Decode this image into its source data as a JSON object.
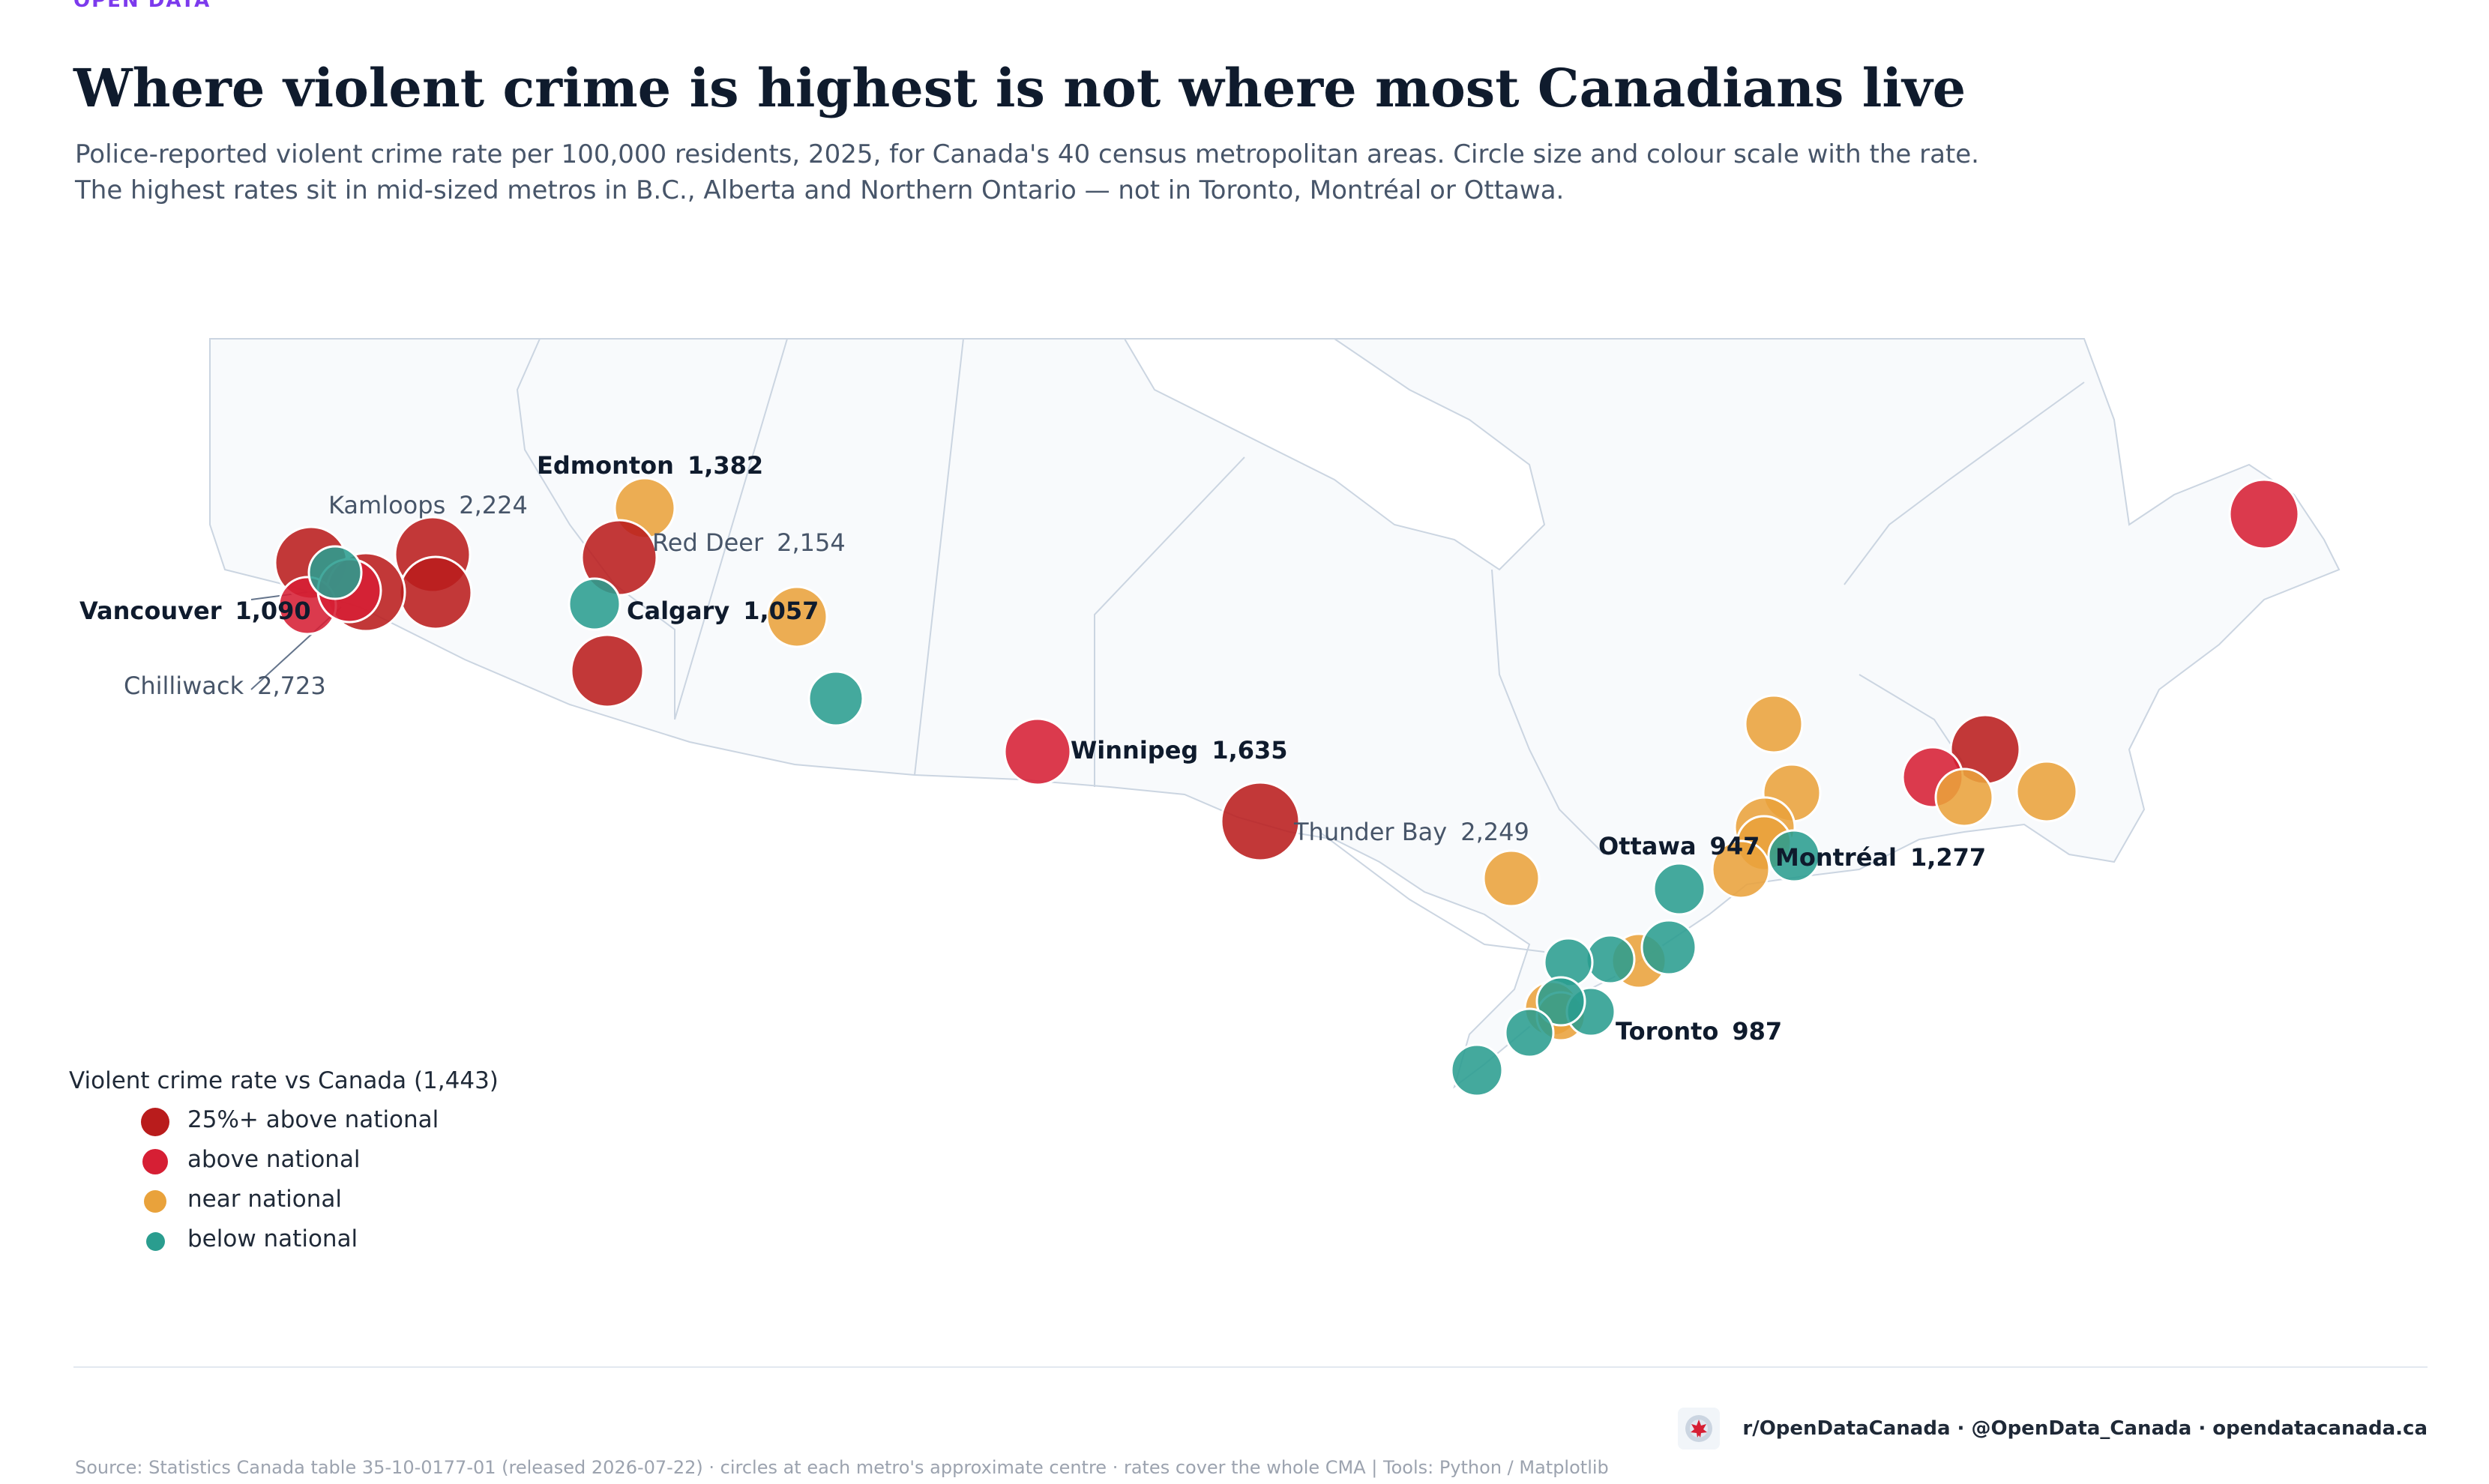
{
  "header": {
    "brand_cut": "OPEN DATA",
    "title": "Where violent crime is highest is not where most Canadians live",
    "subtitle_lines": [
      "Police-reported violent crime rate per 100,000 residents, 2025, for Canada's 40 census metropolitan areas. Circle size and colour scale with the rate.",
      "The highest rates sit in mid-sized metros in B.C., Alberta and Northern Ontario — not in Toronto, Montréal or Ottawa."
    ]
  },
  "colors": {
    "well_above": "#b91c1c",
    "above": "#d61f34",
    "near": "#e9a23b",
    "below": "#2a9d8f",
    "land": "#f8fafc",
    "border": "#cbd5e1"
  },
  "legend": {
    "title": "Violent crime rate vs Canada (1,443)",
    "items": [
      {
        "label": "25%+ above national",
        "color": "#b91c1c"
      },
      {
        "label": "above national",
        "color": "#d61f34"
      },
      {
        "label": "near national",
        "color": "#e9a23b"
      },
      {
        "label": "below national",
        "color": "#2a9d8f"
      }
    ]
  },
  "labels": {
    "kamloops": {
      "name": "Kamloops",
      "value": "2,224"
    },
    "edmonton": {
      "name": "Edmonton",
      "value": "1,382"
    },
    "red_deer": {
      "name": "Red Deer",
      "value": "2,154"
    },
    "vancouver": {
      "name": "Vancouver",
      "value": "1,090"
    },
    "calgary": {
      "name": "Calgary",
      "value": "1,057"
    },
    "chilliwack": {
      "name": "Chilliwack",
      "value": "2,723"
    },
    "winnipeg": {
      "name": "Winnipeg",
      "value": "1,635"
    },
    "thunder_bay": {
      "name": "Thunder Bay",
      "value": "2,249"
    },
    "ottawa": {
      "name": "Ottawa",
      "value": "947"
    },
    "montreal": {
      "name": "Montréal",
      "value": "1,277"
    },
    "toronto": {
      "name": "Toronto",
      "value": "987"
    }
  },
  "footer": {
    "brand_text": "r/OpenDataCanada  ·  @OpenData_Canada  ·  opendatacanada.ca",
    "sources": "Source: Statistics Canada table 35-10-0177-01 (released 2026-07-22)  ·  circles at each metro's approximate centre  ·  rates cover the whole CMA  |  Tools: Python / Matplotlib"
  }
}
